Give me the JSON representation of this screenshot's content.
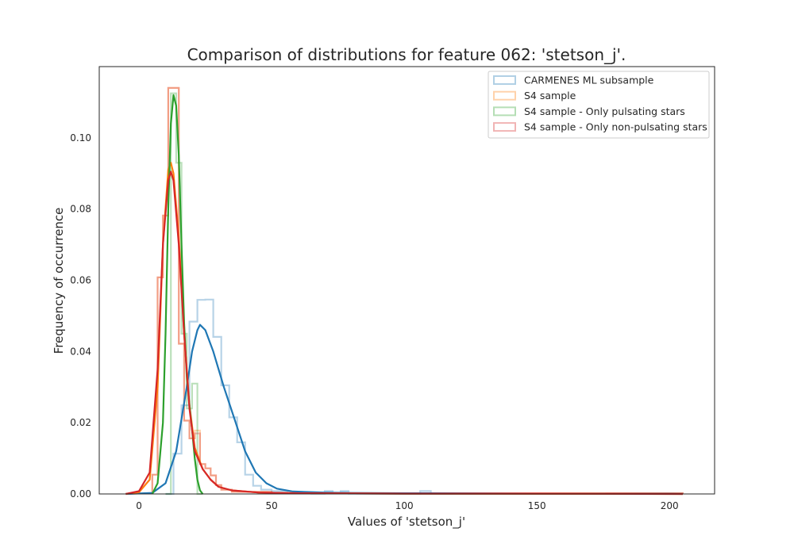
{
  "chart_data": {
    "type": "area",
    "title": "Comparison of distributions for feature 062: 'stetson_j'.",
    "xlabel": "Values of 'stetson_j'",
    "ylabel": "Frequency of occurrence",
    "xlim": [
      -15,
      217
    ],
    "ylim": [
      0,
      0.12
    ],
    "xticks": [
      0,
      50,
      100,
      150,
      200
    ],
    "yticks": [
      0.0,
      0.02,
      0.04,
      0.06,
      0.08,
      0.1
    ],
    "ytick_labels": [
      "0.00",
      "0.02",
      "0.04",
      "0.06",
      "0.08",
      "0.10"
    ],
    "grid": false,
    "legend_position": "top-right",
    "series": [
      {
        "name": "CARMENES ML subsample",
        "color": "#1f77b4",
        "hist": [
          [
            10,
            13,
            0.0
          ],
          [
            13,
            16,
            0.0113
          ],
          [
            16,
            19,
            0.0249
          ],
          [
            19,
            22,
            0.0484
          ],
          [
            22,
            25,
            0.0545
          ],
          [
            25,
            28,
            0.0546
          ],
          [
            28,
            31,
            0.0441
          ],
          [
            31,
            34,
            0.0305
          ],
          [
            34,
            37,
            0.0215
          ],
          [
            37,
            40,
            0.0145
          ],
          [
            40,
            43,
            0.0054
          ],
          [
            43,
            46,
            0.0023
          ],
          [
            46,
            50,
            0.0012
          ],
          [
            50,
            56,
            0.0008
          ],
          [
            56,
            65,
            0.0003
          ],
          [
            65,
            70,
            0.0001
          ],
          [
            70,
            73,
            0.0008
          ],
          [
            73,
            76,
            0.0002
          ],
          [
            76,
            79,
            0.0008
          ],
          [
            79,
            106,
            0.0001
          ],
          [
            106,
            110,
            0.0008
          ],
          [
            110,
            205,
            0.0001
          ]
        ],
        "kde": [
          [
            -5,
            0
          ],
          [
            5,
            0.0003
          ],
          [
            10,
            0.003
          ],
          [
            14,
            0.012
          ],
          [
            18,
            0.03
          ],
          [
            20,
            0.04
          ],
          [
            22,
            0.046
          ],
          [
            23,
            0.0475
          ],
          [
            25,
            0.046
          ],
          [
            28,
            0.04
          ],
          [
            32,
            0.03
          ],
          [
            36,
            0.021
          ],
          [
            40,
            0.012
          ],
          [
            44,
            0.006
          ],
          [
            48,
            0.003
          ],
          [
            52,
            0.0015
          ],
          [
            58,
            0.0007
          ],
          [
            70,
            0.0004
          ],
          [
            80,
            0.0003
          ],
          [
            100,
            0.0002
          ],
          [
            110,
            0.0002
          ],
          [
            150,
            0.0001
          ],
          [
            200,
            0.0001
          ],
          [
            205,
            0
          ]
        ]
      },
      {
        "name": "S4 sample",
        "color": "#ff7f0e",
        "hist": [
          [
            5,
            7,
            0.0054
          ],
          [
            7,
            9,
            0.0608
          ],
          [
            9,
            11,
            0.0782
          ],
          [
            11,
            13,
            0.114
          ],
          [
            13,
            15,
            0.114
          ],
          [
            15,
            17,
            0.0422
          ],
          [
            17,
            19,
            0.0206
          ],
          [
            19,
            21,
            0.0156
          ],
          [
            21,
            23,
            0.0178
          ],
          [
            23,
            25,
            0.0084
          ],
          [
            25,
            27,
            0.0072
          ],
          [
            27,
            29,
            0.0052
          ],
          [
            29,
            31,
            0.0025
          ],
          [
            31,
            35,
            0.0012
          ],
          [
            35,
            50,
            0.0006
          ],
          [
            50,
            205,
            0.0002
          ]
        ],
        "kde": [
          [
            -5,
            0
          ],
          [
            0,
            0.0005
          ],
          [
            4,
            0.004
          ],
          [
            7,
            0.03
          ],
          [
            9,
            0.07
          ],
          [
            11,
            0.091
          ],
          [
            12,
            0.093
          ],
          [
            13,
            0.09
          ],
          [
            15,
            0.072
          ],
          [
            17,
            0.045
          ],
          [
            19,
            0.025
          ],
          [
            21,
            0.013
          ],
          [
            24,
            0.007
          ],
          [
            27,
            0.004
          ],
          [
            30,
            0.002
          ],
          [
            35,
            0.001
          ],
          [
            45,
            0.0004
          ],
          [
            60,
            0.0002
          ],
          [
            100,
            0.0001
          ],
          [
            205,
            0
          ]
        ]
      },
      {
        "name": "S4 sample - Only pulsating stars",
        "color": "#2ca02c",
        "hist": [
          [
            10,
            12,
            0.0
          ],
          [
            12,
            14,
            0.1125
          ],
          [
            14,
            16,
            0.093
          ],
          [
            16,
            18,
            0.045
          ],
          [
            18,
            20,
            0.024
          ],
          [
            20,
            22,
            0.031
          ],
          [
            22,
            24,
            0.0
          ]
        ],
        "kde": [
          [
            5,
            0
          ],
          [
            7,
            0.003
          ],
          [
            9,
            0.02
          ],
          [
            10,
            0.045
          ],
          [
            11,
            0.08
          ],
          [
            12,
            0.104
          ],
          [
            13,
            0.112
          ],
          [
            14,
            0.109
          ],
          [
            15,
            0.095
          ],
          [
            16,
            0.07
          ],
          [
            17,
            0.048
          ],
          [
            18,
            0.033
          ],
          [
            19,
            0.025
          ],
          [
            20,
            0.018
          ],
          [
            21,
            0.01
          ],
          [
            22,
            0.004
          ],
          [
            23,
            0.001
          ],
          [
            24,
            0
          ]
        ]
      },
      {
        "name": "S4 sample - Only non-pulsating stars",
        "color": "#d62728",
        "hist": [
          [
            5,
            7,
            0.0054
          ],
          [
            7,
            9,
            0.0608
          ],
          [
            9,
            11,
            0.0782
          ],
          [
            11,
            13,
            0.114
          ],
          [
            13,
            15,
            0.114
          ],
          [
            15,
            17,
            0.0422
          ],
          [
            17,
            19,
            0.0206
          ],
          [
            19,
            21,
            0.0156
          ],
          [
            21,
            23,
            0.017
          ],
          [
            23,
            25,
            0.0084
          ],
          [
            25,
            27,
            0.0072
          ],
          [
            27,
            29,
            0.0052
          ],
          [
            29,
            31,
            0.0025
          ],
          [
            31,
            35,
            0.0012
          ],
          [
            35,
            50,
            0.0006
          ],
          [
            50,
            205,
            0.0002
          ]
        ],
        "kde": [
          [
            -5,
            0
          ],
          [
            0,
            0.0008
          ],
          [
            4,
            0.006
          ],
          [
            7,
            0.035
          ],
          [
            9,
            0.07
          ],
          [
            11,
            0.088
          ],
          [
            12,
            0.0905
          ],
          [
            13,
            0.088
          ],
          [
            15,
            0.07
          ],
          [
            17,
            0.045
          ],
          [
            19,
            0.024
          ],
          [
            21,
            0.012
          ],
          [
            24,
            0.007
          ],
          [
            27,
            0.004
          ],
          [
            30,
            0.002
          ],
          [
            35,
            0.001
          ],
          [
            45,
            0.0004
          ],
          [
            60,
            0.0002
          ],
          [
            100,
            0.0001
          ],
          [
            150,
            0.0001
          ],
          [
            205,
            0
          ]
        ]
      }
    ]
  }
}
